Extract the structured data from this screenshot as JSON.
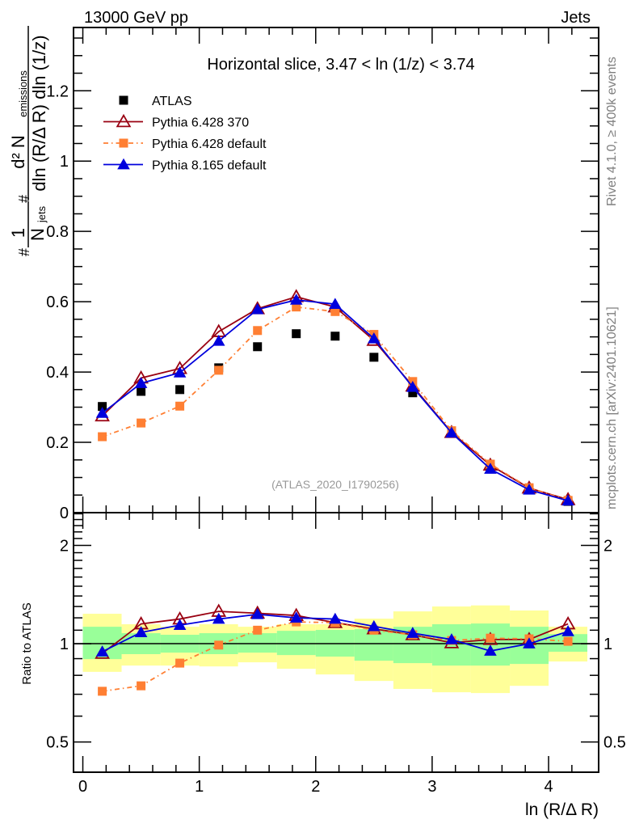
{
  "header": {
    "left": "13000 GeV pp",
    "right": "Jets"
  },
  "side_labels": {
    "rivet": "Rivet 4.1.0, ≥ 400k events",
    "mcplots": "mcplots.cern.ch [arXiv:2401.10621]"
  },
  "chart_data": [
    {
      "type": "line",
      "panel": "main",
      "title": "Horizontal slice, 3.47 < ln (1/z) < 3.74",
      "annotation": "(ATLAS_2020_I1790256)",
      "xlabel": "ln (R/Δ R)",
      "ylabel": "1/N_jets d²N_emissions / dln(R/ΔR) dln(1/z)",
      "ylabel_parts": {
        "num": "d² N",
        "num_sub": "emissions",
        "den": "dln (R/Δ R) dln (1/z)",
        "pre": "1",
        "pre_den": "N",
        "pre_sub": "jets"
      },
      "xlim": [
        -0.08,
        4.43
      ],
      "ylim": [
        0,
        1.38
      ],
      "yticks": [
        0,
        0.2,
        0.4,
        0.6,
        0.8,
        1,
        1.2
      ],
      "ytick_labels": [
        "0",
        "0.2",
        "0.4",
        "0.6",
        "0.8",
        "1",
        "1.2"
      ],
      "legend_position": "top-left",
      "x": [
        0.167,
        0.5,
        0.833,
        1.167,
        1.5,
        1.833,
        2.167,
        2.5,
        2.833,
        3.167,
        3.5,
        3.833,
        4.167
      ],
      "series": [
        {
          "name": "ATLAS",
          "color": "#000000",
          "marker": "square",
          "line": "none",
          "values": [
            0.302,
            0.345,
            0.35,
            0.412,
            0.472,
            0.509,
            0.502,
            0.442,
            0.341,
            0.226,
            0.129,
            0.067,
            0.032
          ]
        },
        {
          "name": "Pythia 6.428 370",
          "color": "#990011",
          "marker": "open-triangle",
          "line": "solid",
          "values": [
            0.275,
            0.383,
            0.41,
            0.515,
            0.58,
            0.614,
            0.585,
            0.49,
            0.36,
            0.228,
            0.135,
            0.07,
            0.037
          ]
        },
        {
          "name": "Pythia 6.428 default",
          "color": "#ff7f33",
          "marker": "square",
          "line": "dashdot",
          "values": [
            0.216,
            0.255,
            0.303,
            0.405,
            0.518,
            0.585,
            0.572,
            0.507,
            0.373,
            0.233,
            0.138,
            0.071,
            0.035
          ]
        },
        {
          "name": "Pythia 8.165 default",
          "color": "#0000dd",
          "marker": "triangle",
          "line": "solid",
          "values": [
            0.283,
            0.368,
            0.398,
            0.488,
            0.578,
            0.605,
            0.593,
            0.495,
            0.357,
            0.227,
            0.124,
            0.065,
            0.034
          ]
        }
      ]
    },
    {
      "type": "line",
      "panel": "ratio",
      "ylabel": "Ratio to ATLAS",
      "xlabel": "ln (R/Δ R)",
      "yscale": "log",
      "xlim": [
        -0.08,
        4.43
      ],
      "ylim": [
        0.404,
        2.52
      ],
      "yticks": [
        0.5,
        1,
        2
      ],
      "ytick_labels": [
        "0.5",
        "1",
        "2"
      ],
      "xticks": [
        0,
        1,
        2,
        3,
        4
      ],
      "xtick_labels": [
        "0",
        "1",
        "2",
        "3",
        "4"
      ],
      "bin_edges": [
        0,
        0.333,
        0.667,
        1.0,
        1.333,
        1.667,
        2.0,
        2.333,
        2.667,
        3.0,
        3.333,
        3.667,
        4.0,
        4.333
      ],
      "bands": {
        "outer": {
          "color": "#ffff99",
          "lo": [
            0.82,
            0.857,
            0.857,
            0.852,
            0.877,
            0.838,
            0.805,
            0.769,
            0.727,
            0.71,
            0.706,
            0.743,
            0.882
          ],
          "hi": [
            1.235,
            1.147,
            1.127,
            1.147,
            1.127,
            1.147,
            1.147,
            1.193,
            1.256,
            1.3,
            1.31,
            1.264,
            1.127
          ]
        },
        "inner": {
          "color": "#99ff99",
          "lo": [
            0.897,
            0.929,
            0.939,
            0.929,
            0.939,
            0.923,
            0.913,
            0.887,
            0.872,
            0.857,
            0.857,
            0.867,
            0.945
          ],
          "hi": [
            1.127,
            1.077,
            1.065,
            1.077,
            1.077,
            1.095,
            1.102,
            1.108,
            1.127,
            1.147,
            1.153,
            1.127,
            1.07
          ]
        }
      },
      "x": [
        0.167,
        0.5,
        0.833,
        1.167,
        1.5,
        1.833,
        2.167,
        2.5,
        2.833,
        3.167,
        3.5,
        3.833,
        4.167
      ],
      "series": [
        {
          "name": "Pythia 6.428 370",
          "color": "#990011",
          "marker": "open-triangle",
          "line": "solid",
          "values": [
            0.934,
            1.15,
            1.19,
            1.256,
            1.24,
            1.22,
            1.16,
            1.11,
            1.065,
            1.006,
            1.03,
            1.03,
            1.15
          ]
        },
        {
          "name": "Pythia 6.428 default",
          "color": "#ff7f33",
          "marker": "square",
          "line": "dashdot",
          "values": [
            0.715,
            0.743,
            0.872,
            0.99,
            1.1,
            1.166,
            1.16,
            1.1,
            1.065,
            1.023,
            1.04,
            1.035,
            1.017
          ]
        },
        {
          "name": "Pythia 8.165 default",
          "color": "#0000dd",
          "marker": "triangle",
          "line": "solid",
          "values": [
            0.945,
            1.083,
            1.14,
            1.19,
            1.23,
            1.2,
            1.19,
            1.13,
            1.077,
            1.03,
            0.95,
            1.0,
            1.09
          ]
        }
      ]
    }
  ]
}
